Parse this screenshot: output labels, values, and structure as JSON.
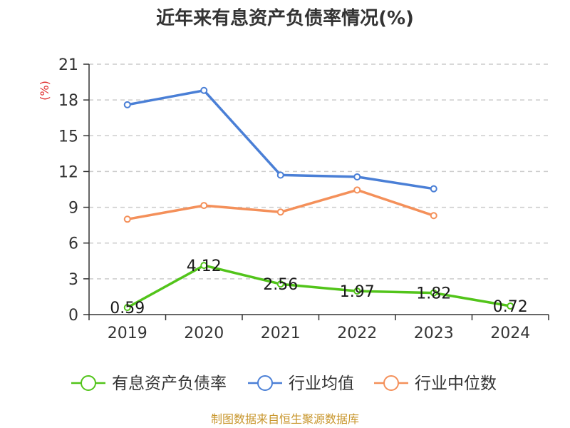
{
  "chart_data": {
    "type": "line",
    "title": "近年来有息资产负债率情况(%)",
    "ylabel": "(%)",
    "xlabel": "",
    "categories": [
      "2019",
      "2020",
      "2021",
      "2022",
      "2023",
      "2024"
    ],
    "ylim": [
      0,
      21
    ],
    "yticks": [
      "0",
      "3",
      "6",
      "9",
      "12",
      "15",
      "18",
      "21"
    ],
    "grid": true,
    "legend_position": "bottom",
    "series": [
      {
        "name": "有息资产负债率",
        "color": "#52c41a",
        "values": [
          0.59,
          4.12,
          2.56,
          1.97,
          1.82,
          0.72
        ],
        "labels": [
          "0.59",
          "4.12",
          "2.56",
          "1.97",
          "1.82",
          "0.72"
        ]
      },
      {
        "name": "行业均值",
        "color": "#4a7fd6",
        "values": [
          17.6,
          18.8,
          11.7,
          11.55,
          10.55,
          null
        ]
      },
      {
        "name": "行业中位数",
        "color": "#f4905a",
        "values": [
          8.0,
          9.15,
          8.6,
          10.45,
          8.3,
          null
        ]
      }
    ],
    "source": "制图数据来自恒生聚源数据库"
  }
}
